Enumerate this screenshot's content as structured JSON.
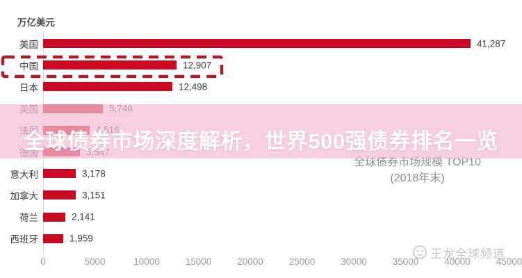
{
  "unit_label": "万亿美元",
  "banner": {
    "title": "全球债券市场深度解析，世界500强债券排名一览"
  },
  "annotation": {
    "title": "全球债券市场规模 TOP10",
    "subtitle": "(2018年末)"
  },
  "watermark": {
    "text": "王龙全球频道",
    "icon": "smiley-face-icon"
  },
  "chart_data": {
    "type": "bar",
    "orientation": "horizontal",
    "title": "全球债券市场规模 TOP10",
    "subtitle": "(2018年末)",
    "unit": "万亿美元",
    "categories": [
      "美国",
      "中国",
      "日本",
      "英国",
      "法国",
      "德国",
      "意大利",
      "加拿大",
      "荷兰",
      "西班牙"
    ],
    "values": [
      41287,
      12907,
      12498,
      5748,
      4516,
      3547,
      3178,
      3151,
      2141,
      1959
    ],
    "value_labels": [
      "41,287",
      "12,907",
      "12,498",
      "5,748",
      "4,516",
      "3,547",
      "3,178",
      "3,151",
      "2,141",
      "1,959"
    ],
    "highlighted_category": "中国",
    "highlighted_index": 1,
    "x_ticks": [
      "0",
      "5000",
      "10000",
      "15000",
      "20000",
      "25000",
      "30000",
      "35000",
      "40000",
      "45000"
    ],
    "x_tick_values": [
      0,
      5000,
      10000,
      15000,
      20000,
      25000,
      30000,
      35000,
      40000,
      45000
    ],
    "xlim": [
      0,
      46000
    ],
    "grid": false,
    "legend": false,
    "notes": "rows for 法国 and 德国 appear faded beneath translucent pink title banner"
  },
  "colors": {
    "bar": "#CB0822",
    "highlight_border": "#A81E2B",
    "banner_bg": "#F2BED6",
    "banner_text": "#FFFFFF",
    "label_text": "#3D3D3D",
    "value_text": "#404040",
    "tick_text": "#9C9C9C",
    "annotation_text": "#8F8F8F",
    "watermark_text": "#C7C7C7",
    "axis_line": "#D9D9D9"
  }
}
